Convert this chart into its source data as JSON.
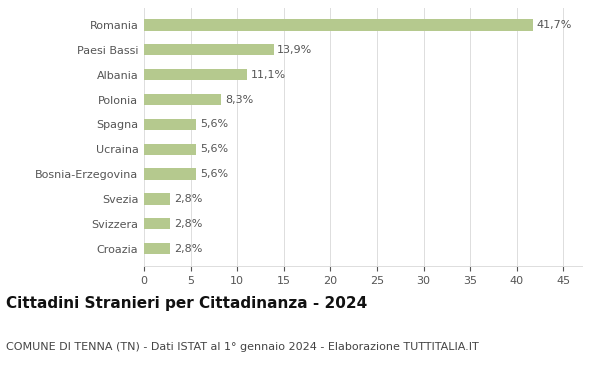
{
  "categories": [
    "Croazia",
    "Svizzera",
    "Svezia",
    "Bosnia-Erzegovina",
    "Ucraina",
    "Spagna",
    "Polonia",
    "Albania",
    "Paesi Bassi",
    "Romania"
  ],
  "values": [
    2.8,
    2.8,
    2.8,
    5.6,
    5.6,
    5.6,
    8.3,
    11.1,
    13.9,
    41.7
  ],
  "labels": [
    "2,8%",
    "2,8%",
    "2,8%",
    "5,6%",
    "5,6%",
    "5,6%",
    "8,3%",
    "11,1%",
    "13,9%",
    "41,7%"
  ],
  "bar_color": "#b5c98e",
  "background_color": "#ffffff",
  "grid_color": "#dddddd",
  "title": "Cittadini Stranieri per Cittadinanza - 2024",
  "subtitle": "COMUNE DI TENNA (TN) - Dati ISTAT al 1° gennaio 2024 - Elaborazione TUTTITALIA.IT",
  "xlim": [
    0,
    47
  ],
  "xticks": [
    0,
    5,
    10,
    15,
    20,
    25,
    30,
    35,
    40,
    45
  ],
  "title_fontsize": 11,
  "subtitle_fontsize": 8,
  "label_fontsize": 8,
  "tick_fontsize": 8,
  "ylabel_fontsize": 8,
  "bar_height": 0.45
}
